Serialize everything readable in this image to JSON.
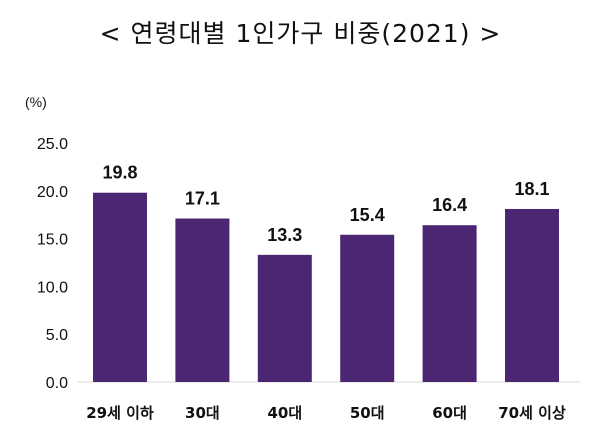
{
  "chart_data": {
    "type": "bar",
    "title": "< 연령대별 1인가구 비중(2021) >",
    "ylabel": "(%)",
    "xlabel": "",
    "categories": [
      "29세 이하",
      "30대",
      "40대",
      "50대",
      "60대",
      "70세 이상"
    ],
    "values": [
      19.8,
      17.1,
      13.3,
      15.4,
      16.4,
      18.1
    ],
    "value_labels": [
      "19.8",
      "17.1",
      "13.3",
      "15.4",
      "16.4",
      "18.1"
    ],
    "yticks": [
      "0.0",
      "5.0",
      "10.0",
      "15.0",
      "20.0",
      "25.0"
    ],
    "ylim": [
      0,
      25
    ],
    "grid": false,
    "bar_color": "#4B2673"
  }
}
